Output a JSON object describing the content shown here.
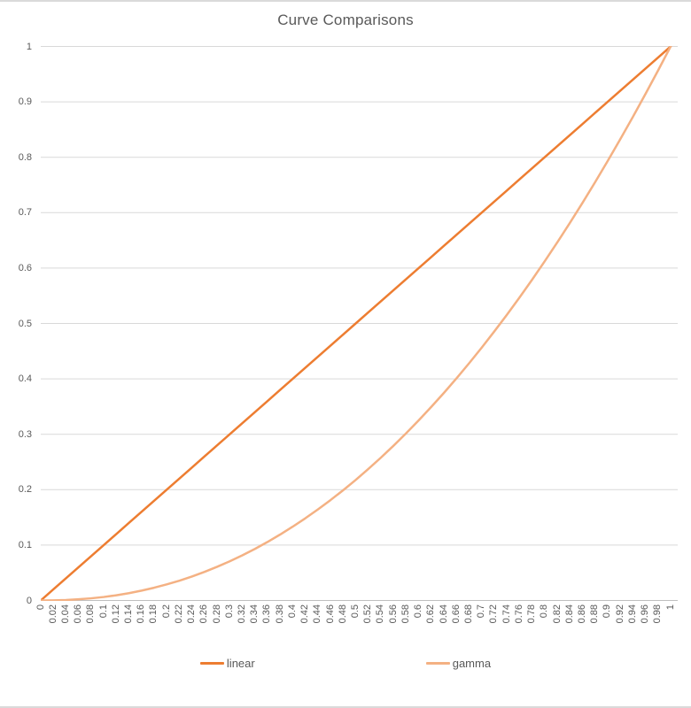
{
  "colors": {
    "linear_series": "#ED7D31",
    "gamma_series": "#F4B183",
    "gridline": "#D9D9D9",
    "axis_line": "#BFBFBF",
    "text": "#595959",
    "background": "#FFFFFF"
  },
  "legend": [
    {
      "label": "linear",
      "color": "#ED7D31"
    },
    {
      "label": "gamma",
      "color": "#F4B183"
    }
  ],
  "chart_data": {
    "type": "line",
    "title": "Curve Comparisons",
    "xlabel": "",
    "ylabel": "",
    "xlim": [
      0,
      1
    ],
    "ylim": [
      0,
      1
    ],
    "grid": "horizontal",
    "legend_position": "bottom",
    "x": [
      0,
      0.02,
      0.04,
      0.06,
      0.08,
      0.1,
      0.12,
      0.14,
      0.16,
      0.18,
      0.2,
      0.22,
      0.24,
      0.26,
      0.28,
      0.3,
      0.32,
      0.34,
      0.36,
      0.38,
      0.4,
      0.42,
      0.44,
      0.46,
      0.48,
      0.5,
      0.52,
      0.54,
      0.56,
      0.58,
      0.6,
      0.62,
      0.64,
      0.66,
      0.68,
      0.7,
      0.72,
      0.74,
      0.76,
      0.78,
      0.8,
      0.82,
      0.84,
      0.86,
      0.88,
      0.9,
      0.92,
      0.94,
      0.96,
      0.98,
      1
    ],
    "x_tick_labels": [
      "0",
      "0.02",
      "0.04",
      "0.06",
      "0.08",
      "0.1",
      "0.12",
      "0.14",
      "0.16",
      "0.18",
      "0.2",
      "0.22",
      "0.24",
      "0.26",
      "0.28",
      "0.3",
      "0.32",
      "0.34",
      "0.36",
      "0.38",
      "0.4",
      "0.42",
      "0.44",
      "0.46",
      "0.48",
      "0.5",
      "0.52",
      "0.54",
      "0.56",
      "0.58",
      "0.6",
      "0.62",
      "0.64",
      "0.66",
      "0.68",
      "0.7",
      "0.72",
      "0.74",
      "0.76",
      "0.78",
      "0.8",
      "0.82",
      "0.84",
      "0.86",
      "0.88",
      "0.9",
      "0.92",
      "0.94",
      "0.96",
      "0.98",
      "1"
    ],
    "y_tick_labels": [
      "0",
      "0.1",
      "0.2",
      "0.3",
      "0.4",
      "0.5",
      "0.6",
      "0.7",
      "0.8",
      "0.9",
      "1"
    ],
    "series": [
      {
        "name": "linear",
        "color": "#ED7D31",
        "values": [
          0,
          0.02,
          0.04,
          0.06,
          0.08,
          0.1,
          0.12,
          0.14,
          0.16,
          0.18,
          0.2,
          0.22,
          0.24,
          0.26,
          0.28,
          0.3,
          0.32,
          0.34,
          0.36,
          0.38,
          0.4,
          0.42,
          0.44,
          0.46,
          0.48,
          0.5,
          0.52,
          0.54,
          0.56,
          0.58,
          0.6,
          0.62,
          0.64,
          0.66,
          0.68,
          0.7,
          0.72,
          0.74,
          0.76,
          0.78,
          0.8,
          0.82,
          0.84,
          0.86,
          0.88,
          0.9,
          0.92,
          0.94,
          0.96,
          0.98,
          1
        ]
      },
      {
        "name": "gamma",
        "color": "#F4B183",
        "gamma_exponent": 2.2,
        "values": [
          0,
          0.0002,
          0.0008,
          0.0021,
          0.0039,
          0.0063,
          0.0094,
          0.0132,
          0.0178,
          0.023,
          0.029,
          0.0357,
          0.0433,
          0.0516,
          0.0608,
          0.0707,
          0.0815,
          0.0931,
          0.1056,
          0.119,
          0.1332,
          0.1483,
          0.1643,
          0.1812,
          0.1989,
          0.2176,
          0.2373,
          0.2578,
          0.2793,
          0.3017,
          0.3251,
          0.3494,
          0.3746,
          0.4009,
          0.4281,
          0.4563,
          0.4855,
          0.5156,
          0.5468,
          0.5789,
          0.6121,
          0.6462,
          0.6814,
          0.7176,
          0.7548,
          0.7931,
          0.8324,
          0.8727,
          0.9141,
          0.9565,
          1
        ]
      }
    ]
  }
}
